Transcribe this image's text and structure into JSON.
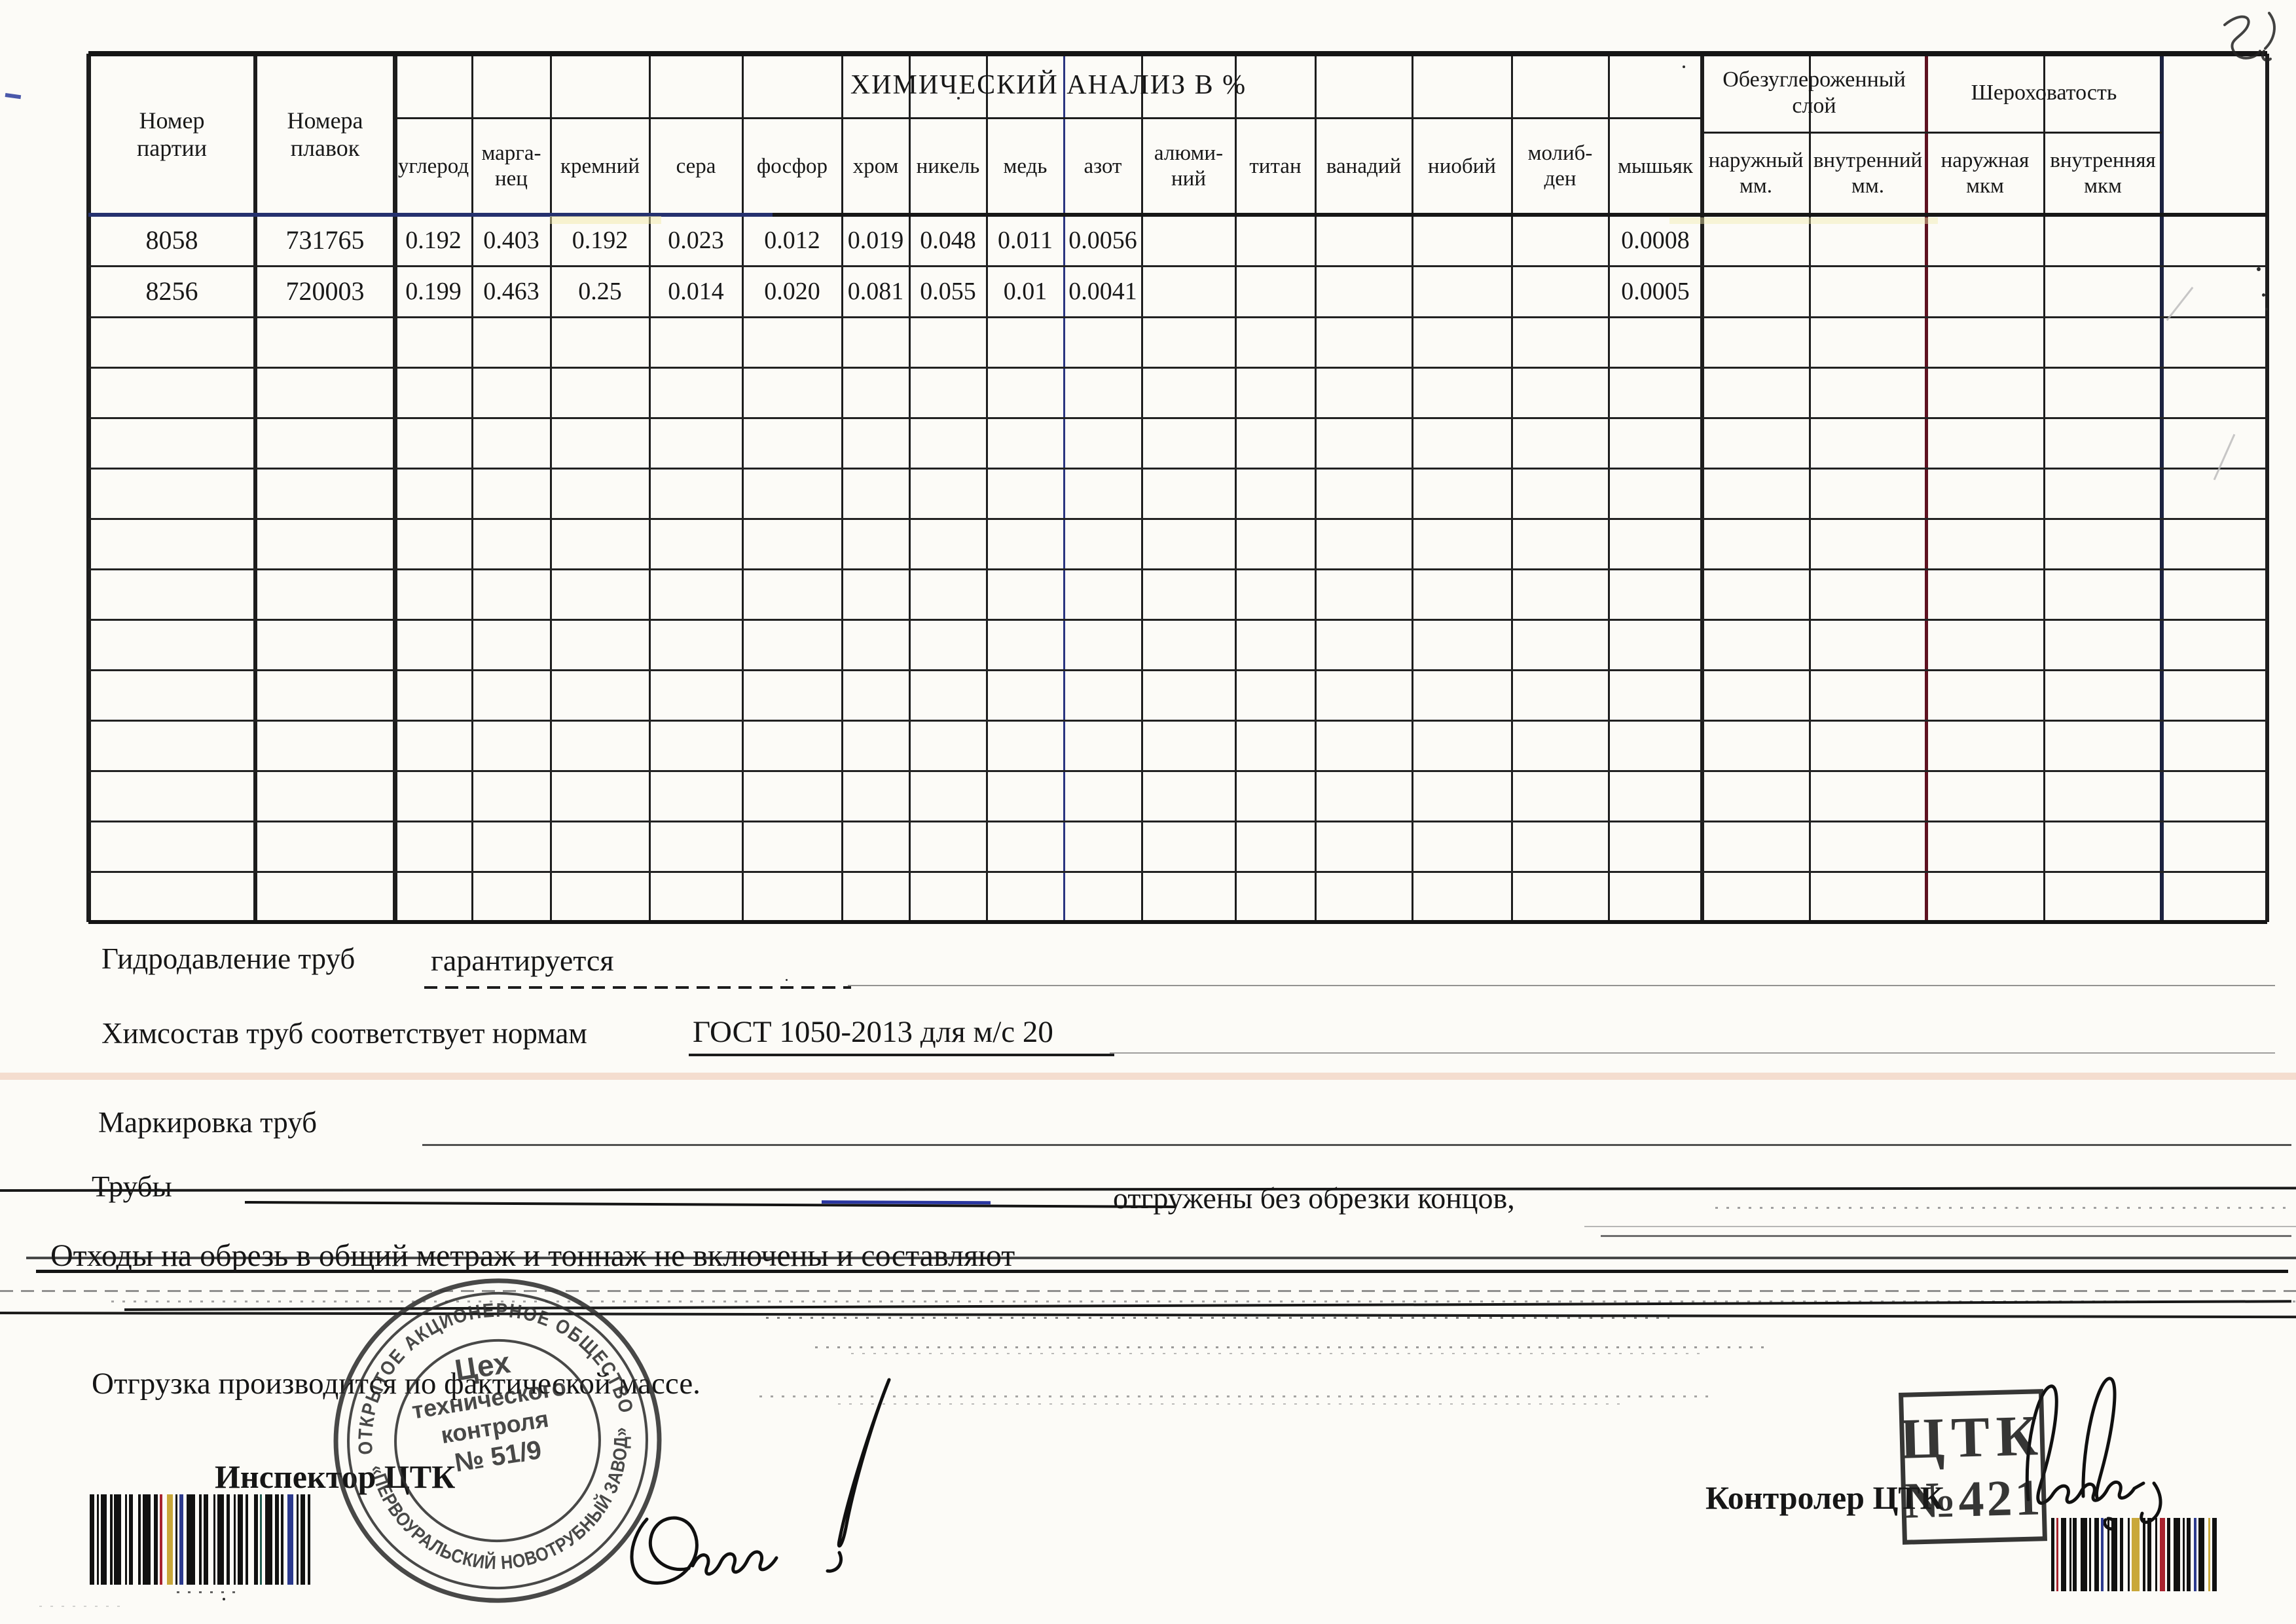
{
  "document": {
    "type_hint": "scanned quality certificate (chemical analysis of pipes)",
    "background_color": "#fcfbf7"
  },
  "table": {
    "title": "ХИМИЧЕСКИЙ АНАЛИЗ В  %",
    "batch_header": "Номер\nпартии",
    "heats_header": "Номера\nплавок",
    "chem_columns": [
      "углерод",
      "марга-\nнец",
      "кремний",
      "сера",
      "фосфор",
      "хром",
      "никель",
      "медь",
      "азот",
      "алюми-\nний",
      "титан",
      "ванадий",
      "ниобий",
      "молиб-\nден",
      "мышьяк"
    ],
    "decarb_group": "Обезуглероженный\nслой",
    "decarb_columns": [
      "наружный\nмм.",
      "внутренний\nмм."
    ],
    "rough_group": "Шероховатость",
    "rough_columns": [
      "наружная\nмкм",
      "внутренняя\nмкм"
    ],
    "rows": [
      {
        "batch": "8058",
        "heats": "731765",
        "chem": [
          "0.192",
          "0.403",
          "0.192",
          "0.023",
          "0.012",
          "0.019",
          "0.048",
          "0.011",
          "0.0056",
          "",
          "",
          "",
          "",
          "",
          "0.0008"
        ],
        "decarb": [
          "",
          ""
        ],
        "rough": [
          "",
          ""
        ]
      },
      {
        "batch": "8256",
        "heats": "720003",
        "chem": [
          "0.199",
          "0.463",
          "0.25",
          "0.014",
          "0.020",
          "0.081",
          "0.055",
          "0.01",
          "0.0041",
          "",
          "",
          "",
          "",
          "",
          "0.0005"
        ],
        "decarb": [
          "",
          ""
        ],
        "rough": [
          "",
          ""
        ]
      }
    ],
    "empty_row_count": 12
  },
  "notes": {
    "hydro_label": "Гидродавление труб",
    "hydro_value": "гарантируется",
    "chem_label": "Химсостав труб соответствует нормам",
    "chem_value": "ГОСТ 1050-2013 для м/с 20",
    "marking_label": "Маркировка труб",
    "pipes_label": "Трубы",
    "pipes_value": "отгружены без обрезки концов,",
    "waste_line": "Отходы на обрезь в общий метраж и тоннаж не включены и составляют",
    "shipping_line": "Отгрузка производится по фактической массе."
  },
  "signatures": {
    "inspector_label": "Инспектор ЦТК",
    "controller_label": "Контролер ЦТК"
  },
  "stamps": {
    "round": {
      "arc_top": "ОТКРЫТОЕ АКЦИОНЕРНОЕ ОБЩЕСТВО",
      "arc_bottom": "«ПЕРВОУРАЛЬСКИЙ НОВОТРУБНЫЙ ЗАВОД»",
      "center_line1": "Цех",
      "center_line2": "технического",
      "center_line3": "контроля",
      "center_line4": "№ 51/9"
    },
    "rect": {
      "line1": "ЦТК",
      "line2": "№421"
    }
  },
  "colors": {
    "grid": "#1d1d1d",
    "navy_ink": "#25316f",
    "maroon_line": "#5e1220",
    "pink_band": "#eecab4",
    "stamp_ink": "#262626"
  }
}
